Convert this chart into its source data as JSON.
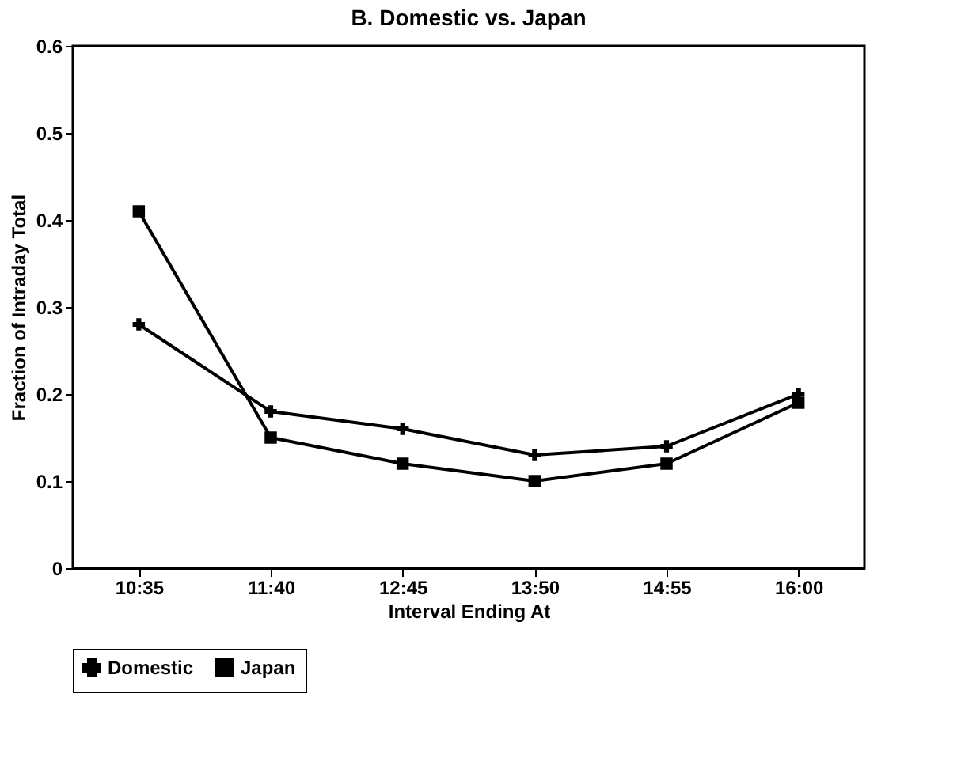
{
  "chart_data": {
    "type": "line",
    "title": "B. Domestic vs. Japan",
    "xlabel": "Interval Ending At",
    "ylabel": "Fraction of Intraday Total",
    "categories": [
      "10:35",
      "11:40",
      "12:45",
      "13:50",
      "14:55",
      "16:00"
    ],
    "series": [
      {
        "name": "Domestic",
        "color": "#000000",
        "marker": "cross",
        "values": [
          0.28,
          0.18,
          0.16,
          0.13,
          0.14,
          0.2
        ]
      },
      {
        "name": "Japan",
        "color": "#000000",
        "marker": "square",
        "values": [
          0.41,
          0.15,
          0.12,
          0.1,
          0.12,
          0.19
        ]
      }
    ],
    "ylim": [
      0,
      0.6
    ],
    "yticks": [
      0,
      0.1,
      0.2,
      0.3,
      0.4,
      0.5,
      0.6
    ],
    "grid": false,
    "legend": "bottom",
    "line_style": "solid"
  }
}
